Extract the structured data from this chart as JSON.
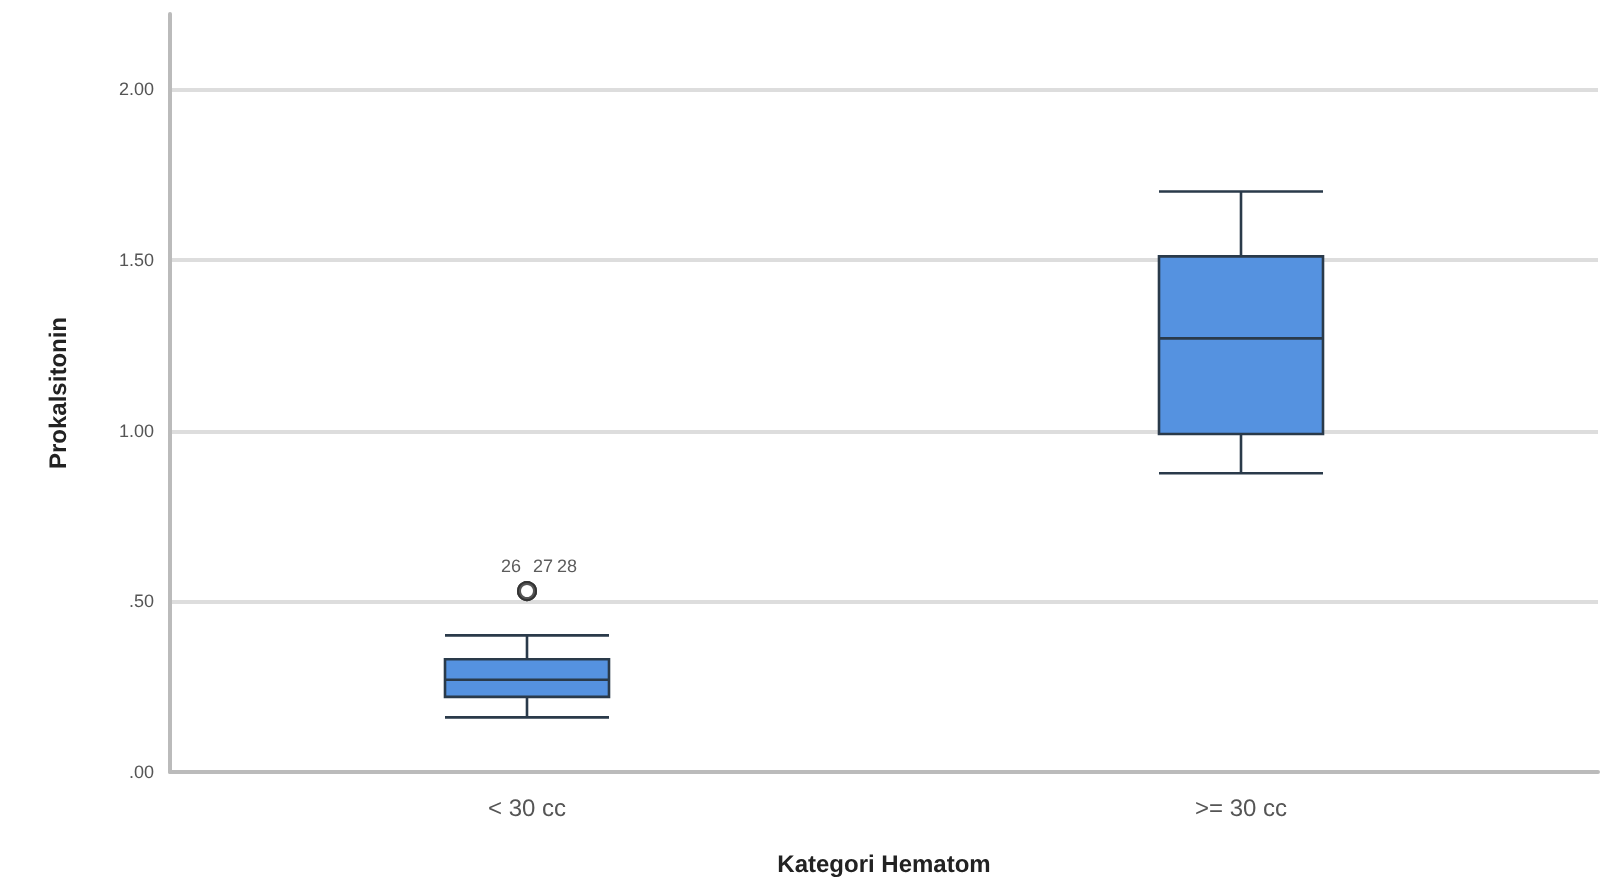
{
  "chart_data": {
    "type": "box",
    "xlabel": "Kategori Hematom",
    "ylabel": "Prokalsitonin",
    "categories": [
      "< 30 cc",
      ">= 30 cc"
    ],
    "series": [
      {
        "color": "#5592e0",
        "boxes": [
          {
            "low": 0.16,
            "q1": 0.22,
            "median": 0.27,
            "q3": 0.33,
            "high": 0.4,
            "outliers": [
              0.53,
              0.53,
              0.53
            ]
          },
          {
            "low": 0.875,
            "q1": 0.99,
            "median": 1.27,
            "q3": 1.51,
            "high": 1.7
          }
        ]
      }
    ],
    "ylim": [
      0,
      2.22
    ],
    "yticks": [
      {
        "value": 0,
        "label": ".00"
      },
      {
        "value": 0.5,
        "label": ".50"
      },
      {
        "value": 1,
        "label": "1.00"
      },
      {
        "value": 1.5,
        "label": "1.50"
      },
      {
        "value": 2,
        "label": "2.00"
      }
    ],
    "grid": "y",
    "marker": "circle",
    "annotations": [
      "26",
      "27",
      "28"
    ]
  }
}
